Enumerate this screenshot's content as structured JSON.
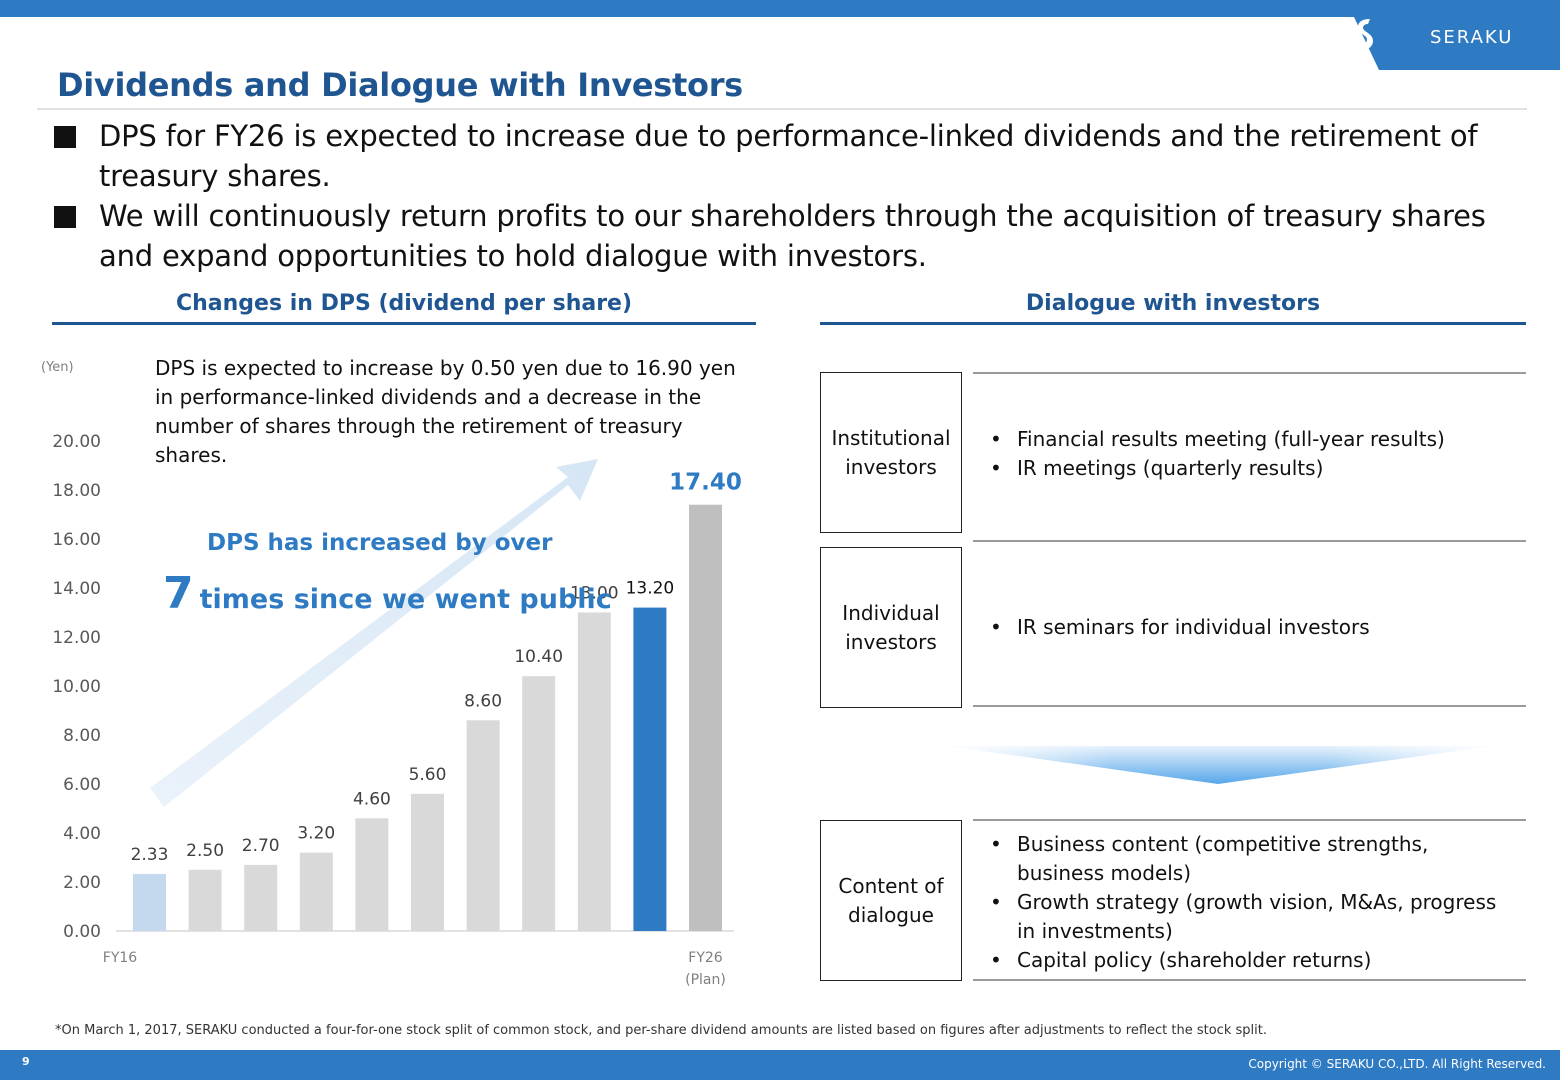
{
  "header": {
    "logo_text": "SERAKU",
    "title": "Dividends and Dialogue with Investors"
  },
  "bullets": [
    "DPS for FY26 is expected to increase due to performance-linked dividends and the retirement of treasury shares.",
    "We will continuously return profits to our shareholders through the acquisition of treasury shares and expand opportunities to hold dialogue with investors."
  ],
  "left_section": {
    "heading": "Changes in DPS (dividend per share)",
    "note": "DPS is expected to increase by 0.50 yen due to 16.90 yen in performance-linked dividends and a decrease in the number of shares through the retirement of treasury shares.",
    "callout_line1": "DPS has increased by over",
    "callout_big": "7",
    "callout_line2": "times since we went public"
  },
  "chart_data": {
    "type": "bar",
    "ylabel": "(Yen)",
    "ylim": [
      0,
      20
    ],
    "yticks": [
      "0.00",
      "2.00",
      "4.00",
      "6.00",
      "8.00",
      "10.00",
      "12.00",
      "14.00",
      "16.00",
      "18.00",
      "20.00"
    ],
    "x_labels_shown": {
      "first": "FY16",
      "last": "FY26",
      "last_sub": "(Plan)"
    },
    "values": [
      2.33,
      2.5,
      2.7,
      3.2,
      4.6,
      5.6,
      8.6,
      10.4,
      13.0,
      13.2,
      17.4
    ],
    "value_labels": [
      "2.33",
      "2.50",
      "2.70",
      "3.20",
      "4.60",
      "5.60",
      "8.60",
      "10.40",
      "13.00",
      "13.20",
      "17.40"
    ],
    "bar_colors": [
      "#c5d9ee",
      "#d9d9d9",
      "#d9d9d9",
      "#d9d9d9",
      "#d9d9d9",
      "#d9d9d9",
      "#d9d9d9",
      "#d9d9d9",
      "#d9d9d9",
      "#2e7bc4",
      "#bfbfbf"
    ],
    "label_colors": [
      "#404040",
      "#404040",
      "#404040",
      "#404040",
      "#404040",
      "#404040",
      "#404040",
      "#404040",
      "#404040",
      "#111111",
      "#2e7bc4"
    ],
    "grid": false
  },
  "right_section": {
    "heading": "Dialogue with investors",
    "institutional": {
      "label": "Institutional investors",
      "items": [
        "Financial results meeting (full-year results)",
        "IR meetings (quarterly results)"
      ]
    },
    "individual": {
      "label": "Individual investors",
      "items": [
        "IR seminars for individual investors"
      ]
    },
    "content": {
      "label": "Content of dialogue",
      "items": [
        "Business content (competitive strengths, business models)",
        "Growth strategy (growth vision, M&As, progress in investments)",
        "Capital policy (shareholder returns)"
      ]
    }
  },
  "footer": {
    "footnote": "*On March 1, 2017, SERAKU conducted a four-for-one stock split of common stock, and per-share dividend amounts are listed based on figures after adjustments to reflect the stock split.",
    "page_number": "9",
    "copyright": "Copyright © SERAKU CO.,LTD. All Right Reserved."
  },
  "colors": {
    "brand_blue": "#2e7bc4",
    "title_navy": "#1f5590"
  }
}
